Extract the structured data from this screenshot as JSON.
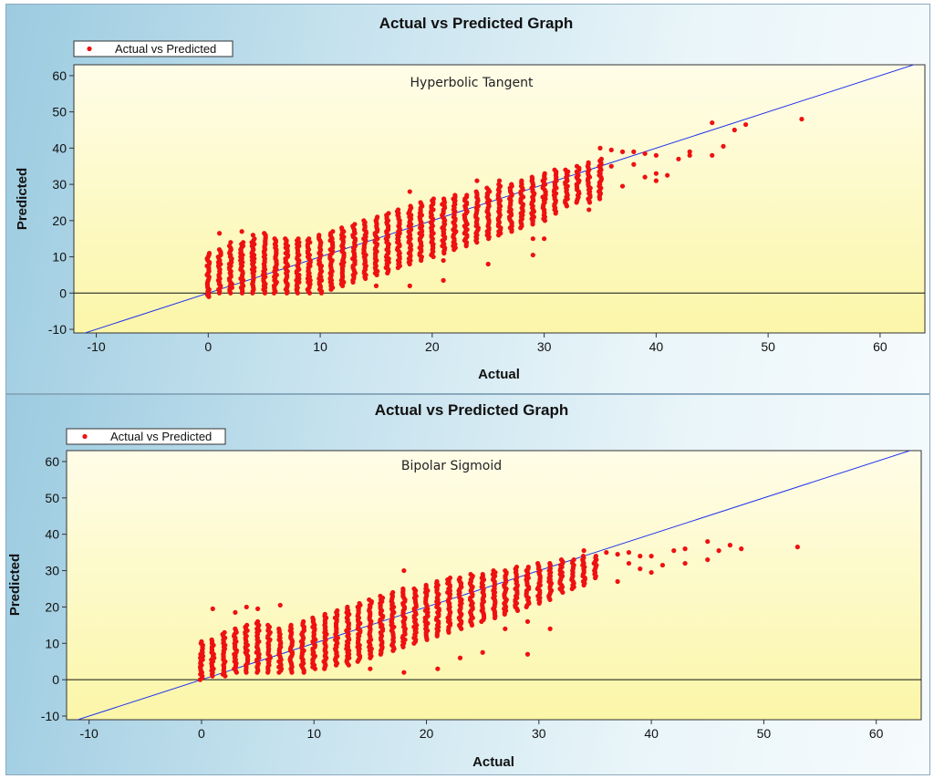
{
  "chart_data": [
    {
      "type": "scatter",
      "title": "Actual vs Predicted Graph",
      "legend_label": "Actual vs Predicted",
      "annotation": "Hyperbolic Tangent",
      "xlabel": "Actual",
      "ylabel": "Predicted",
      "xlim": [
        -12,
        64
      ],
      "ylim": [
        -11,
        63
      ],
      "xticks": [
        -10,
        0,
        10,
        20,
        30,
        40,
        50,
        60
      ],
      "yticks": [
        -10,
        0,
        10,
        20,
        30,
        40,
        50,
        60
      ],
      "reference_lines": [
        "y = x",
        "y = 0"
      ],
      "colors": {
        "points": "#ee1111",
        "diagonal": "#2233ee",
        "zero_line": "#111111",
        "plot_top": "#fffde8",
        "plot_bottom": "#fbf6a8"
      },
      "columns": [
        {
          "x": 0,
          "min": -1,
          "max": 11
        },
        {
          "x": 1,
          "min": 0,
          "max": 12
        },
        {
          "x": 2,
          "min": 0,
          "max": 13
        },
        {
          "x": 3,
          "min": 0,
          "max": 14
        },
        {
          "x": 4,
          "min": 0,
          "max": 15
        },
        {
          "x": 5,
          "min": 0,
          "max": 16
        },
        {
          "x": 6,
          "min": 0,
          "max": 15
        },
        {
          "x": 7,
          "min": 0,
          "max": 15
        },
        {
          "x": 8,
          "min": 0,
          "max": 15
        },
        {
          "x": 9,
          "min": 0,
          "max": 15
        },
        {
          "x": 10,
          "min": 0,
          "max": 16
        },
        {
          "x": 11,
          "min": 1,
          "max": 17
        },
        {
          "x": 12,
          "min": 2,
          "max": 18
        },
        {
          "x": 13,
          "min": 3,
          "max": 19
        },
        {
          "x": 14,
          "min": 4,
          "max": 20
        },
        {
          "x": 15,
          "min": 5,
          "max": 21
        },
        {
          "x": 16,
          "min": 6,
          "max": 22
        },
        {
          "x": 17,
          "min": 7,
          "max": 23
        },
        {
          "x": 18,
          "min": 8,
          "max": 24
        },
        {
          "x": 19,
          "min": 9,
          "max": 25
        },
        {
          "x": 20,
          "min": 10,
          "max": 26
        },
        {
          "x": 21,
          "min": 11,
          "max": 26
        },
        {
          "x": 22,
          "min": 12,
          "max": 27
        },
        {
          "x": 23,
          "min": 13,
          "max": 27
        },
        {
          "x": 24,
          "min": 14,
          "max": 28
        },
        {
          "x": 25,
          "min": 15,
          "max": 29
        },
        {
          "x": 26,
          "min": 16,
          "max": 30
        },
        {
          "x": 27,
          "min": 17,
          "max": 30
        },
        {
          "x": 28,
          "min": 18,
          "max": 31
        },
        {
          "x": 29,
          "min": 19,
          "max": 32
        },
        {
          "x": 30,
          "min": 20,
          "max": 33
        },
        {
          "x": 31,
          "min": 22,
          "max": 34
        },
        {
          "x": 32,
          "min": 24,
          "max": 34
        },
        {
          "x": 33,
          "min": 25,
          "max": 35
        },
        {
          "x": 34,
          "min": 25,
          "max": 36
        },
        {
          "x": 35,
          "min": 26,
          "max": 37
        }
      ],
      "outliers": [
        [
          1,
          16.5
        ],
        [
          2,
          14
        ],
        [
          3,
          17
        ],
        [
          4,
          16
        ],
        [
          5,
          16.5
        ],
        [
          15,
          2
        ],
        [
          16,
          5.5
        ],
        [
          18,
          2
        ],
        [
          18,
          28
        ],
        [
          21,
          3.5
        ],
        [
          21,
          9
        ],
        [
          24,
          31
        ],
        [
          25,
          8
        ],
        [
          26,
          31
        ],
        [
          29,
          10.5
        ],
        [
          29,
          15
        ],
        [
          30,
          15
        ],
        [
          34,
          23
        ],
        [
          35,
          40
        ],
        [
          36,
          35
        ],
        [
          36,
          39.5
        ],
        [
          37,
          29.5
        ],
        [
          37,
          39
        ],
        [
          38,
          35.5
        ],
        [
          38,
          39
        ],
        [
          39,
          32
        ],
        [
          39,
          38.5
        ],
        [
          40,
          31
        ],
        [
          40,
          33
        ],
        [
          40,
          38
        ],
        [
          41,
          32.5
        ],
        [
          42,
          37
        ],
        [
          43,
          38
        ],
        [
          43,
          39
        ],
        [
          45,
          38
        ],
        [
          45,
          47
        ],
        [
          46,
          40.5
        ],
        [
          47,
          45
        ],
        [
          48,
          46.5
        ],
        [
          53,
          48
        ]
      ]
    },
    {
      "type": "scatter",
      "title": "Actual vs Predicted Graph",
      "legend_label": "Actual vs  Predicted",
      "annotation": "Bipolar Sigmoid",
      "xlabel": "Actual",
      "ylabel": "Predicted",
      "xlim": [
        -12,
        64
      ],
      "ylim": [
        -11,
        63
      ],
      "xticks": [
        -10,
        0,
        10,
        20,
        30,
        40,
        50,
        60
      ],
      "yticks": [
        -10,
        0,
        10,
        20,
        30,
        40,
        50,
        60
      ],
      "reference_lines": [
        "y = x",
        "y = 0"
      ],
      "colors": {
        "points": "#ee1111",
        "diagonal": "#2233ee",
        "zero_line": "#111111",
        "plot_top": "#fffde8",
        "plot_bottom": "#fbf6a8"
      },
      "columns": [
        {
          "x": 0,
          "min": 0,
          "max": 10
        },
        {
          "x": 1,
          "min": 1,
          "max": 11
        },
        {
          "x": 2,
          "min": 1,
          "max": 13
        },
        {
          "x": 3,
          "min": 2,
          "max": 14
        },
        {
          "x": 4,
          "min": 2,
          "max": 15
        },
        {
          "x": 5,
          "min": 2,
          "max": 16
        },
        {
          "x": 6,
          "min": 2,
          "max": 15
        },
        {
          "x": 7,
          "min": 2,
          "max": 14
        },
        {
          "x": 8,
          "min": 2,
          "max": 15
        },
        {
          "x": 9,
          "min": 2,
          "max": 16
        },
        {
          "x": 10,
          "min": 3,
          "max": 17
        },
        {
          "x": 11,
          "min": 3,
          "max": 18
        },
        {
          "x": 12,
          "min": 4,
          "max": 19
        },
        {
          "x": 13,
          "min": 4,
          "max": 20
        },
        {
          "x": 14,
          "min": 5,
          "max": 21
        },
        {
          "x": 15,
          "min": 6,
          "max": 22
        },
        {
          "x": 16,
          "min": 7,
          "max": 23
        },
        {
          "x": 17,
          "min": 8,
          "max": 24
        },
        {
          "x": 18,
          "min": 9,
          "max": 25
        },
        {
          "x": 19,
          "min": 10,
          "max": 25
        },
        {
          "x": 20,
          "min": 11,
          "max": 26
        },
        {
          "x": 21,
          "min": 12,
          "max": 27
        },
        {
          "x": 22,
          "min": 13,
          "max": 28
        },
        {
          "x": 23,
          "min": 14,
          "max": 28
        },
        {
          "x": 24,
          "min": 15,
          "max": 29
        },
        {
          "x": 25,
          "min": 16,
          "max": 29
        },
        {
          "x": 26,
          "min": 17,
          "max": 30
        },
        {
          "x": 27,
          "min": 18,
          "max": 30
        },
        {
          "x": 28,
          "min": 19,
          "max": 31
        },
        {
          "x": 29,
          "min": 20,
          "max": 31
        },
        {
          "x": 30,
          "min": 21,
          "max": 32
        },
        {
          "x": 31,
          "min": 22,
          "max": 32
        },
        {
          "x": 32,
          "min": 24,
          "max": 33
        },
        {
          "x": 33,
          "min": 25,
          "max": 33
        },
        {
          "x": 34,
          "min": 26,
          "max": 34
        },
        {
          "x": 35,
          "min": 28,
          "max": 34
        }
      ],
      "outliers": [
        [
          0,
          10.5
        ],
        [
          1,
          19.5
        ],
        [
          3,
          18.5
        ],
        [
          4,
          20
        ],
        [
          5,
          19.5
        ],
        [
          7,
          20.5
        ],
        [
          15,
          3
        ],
        [
          18,
          2
        ],
        [
          18,
          30
        ],
        [
          21,
          3
        ],
        [
          23,
          6
        ],
        [
          25,
          7.5
        ],
        [
          27,
          14
        ],
        [
          29,
          7
        ],
        [
          29,
          16
        ],
        [
          31,
          14
        ],
        [
          34,
          35.5
        ],
        [
          36,
          35
        ],
        [
          37,
          27
        ],
        [
          37,
          34.5
        ],
        [
          38,
          32
        ],
        [
          38,
          35
        ],
        [
          39,
          30.5
        ],
        [
          39,
          34
        ],
        [
          40,
          29.5
        ],
        [
          40,
          34
        ],
        [
          41,
          31.5
        ],
        [
          42,
          35.5
        ],
        [
          43,
          32
        ],
        [
          43,
          36
        ],
        [
          45,
          33
        ],
        [
          45,
          38
        ],
        [
          46,
          35.5
        ],
        [
          47,
          37
        ],
        [
          48,
          36
        ],
        [
          53,
          36.5
        ]
      ]
    }
  ]
}
